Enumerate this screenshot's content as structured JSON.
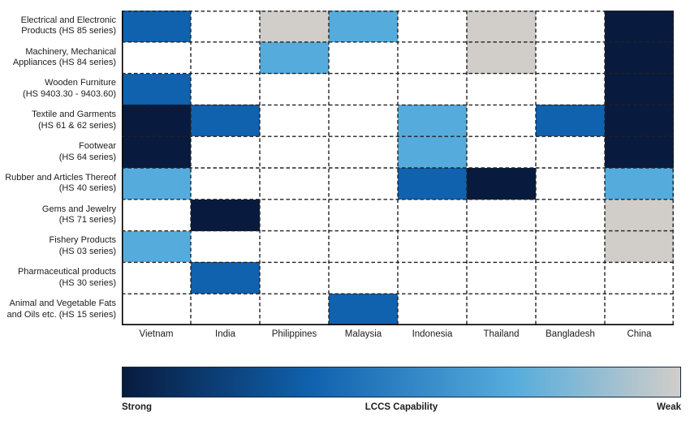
{
  "chart_data": {
    "type": "heatmap",
    "columns": [
      "Vietnam",
      "India",
      "Philippines",
      "Malaysia",
      "Indonesia",
      "Thailand",
      "Bangladesh",
      "China"
    ],
    "row_labels": [
      [
        "Electrical and Electronic",
        "Products (HS 85 series)"
      ],
      [
        "Machinery, Mechanical",
        "Appliances (HS 84 series)"
      ],
      [
        "Wooden Furniture",
        "(HS 9403.30 - 9403.60)"
      ],
      [
        "Textile and Garments",
        "(HS 61 & 62 series)"
      ],
      [
        "Footwear",
        "(HS 64 series)"
      ],
      [
        "Rubber and Articles Thereof",
        "(HS 40 series)"
      ],
      [
        "Gems and Jewelry",
        "(HS 71 series)"
      ],
      [
        "Fishery Products",
        "(HS 03 series)"
      ],
      [
        "Pharmaceutical products",
        "(HS 30 series)"
      ],
      [
        "Animal and Vegetable Fats",
        "and Oils etc. (HS 15 series)"
      ]
    ],
    "capability_scale": [
      "strong",
      "medium",
      "light",
      "weak",
      "none"
    ],
    "palette": {
      "strong": "#081B3E",
      "medium": "#1062AE",
      "light": "#55ACDC",
      "weak": "#D1CDC9",
      "none": "#FFFFFF"
    },
    "cells": [
      [
        "medium",
        "none",
        "weak",
        "light",
        "none",
        "weak",
        "none",
        "strong"
      ],
      [
        "none",
        "none",
        "light",
        "none",
        "none",
        "weak",
        "none",
        "strong"
      ],
      [
        "medium",
        "none",
        "none",
        "none",
        "none",
        "none",
        "none",
        "strong"
      ],
      [
        "strong",
        "medium",
        "none",
        "none",
        "light",
        "none",
        "medium",
        "strong"
      ],
      [
        "strong",
        "none",
        "none",
        "none",
        "light",
        "none",
        "none",
        "strong"
      ],
      [
        "light",
        "none",
        "none",
        "none",
        "medium",
        "strong",
        "none",
        "light"
      ],
      [
        "none",
        "strong",
        "none",
        "none",
        "none",
        "none",
        "none",
        "weak"
      ],
      [
        "light",
        "none",
        "none",
        "none",
        "none",
        "none",
        "none",
        "weak"
      ],
      [
        "none",
        "medium",
        "none",
        "none",
        "none",
        "none",
        "none",
        "none"
      ],
      [
        "none",
        "none",
        "none",
        "medium",
        "none",
        "none",
        "none",
        "none"
      ]
    ],
    "legend": {
      "left_label": "Strong",
      "title": "LCCS Capability",
      "right_label": "Weak",
      "gradient": [
        "#081B3E",
        "#1062AE",
        "#55ACDC",
        "#D1CDC9"
      ]
    },
    "grid": {
      "dashed": true,
      "line_color": "#212121",
      "axis_color": "#000000"
    }
  }
}
